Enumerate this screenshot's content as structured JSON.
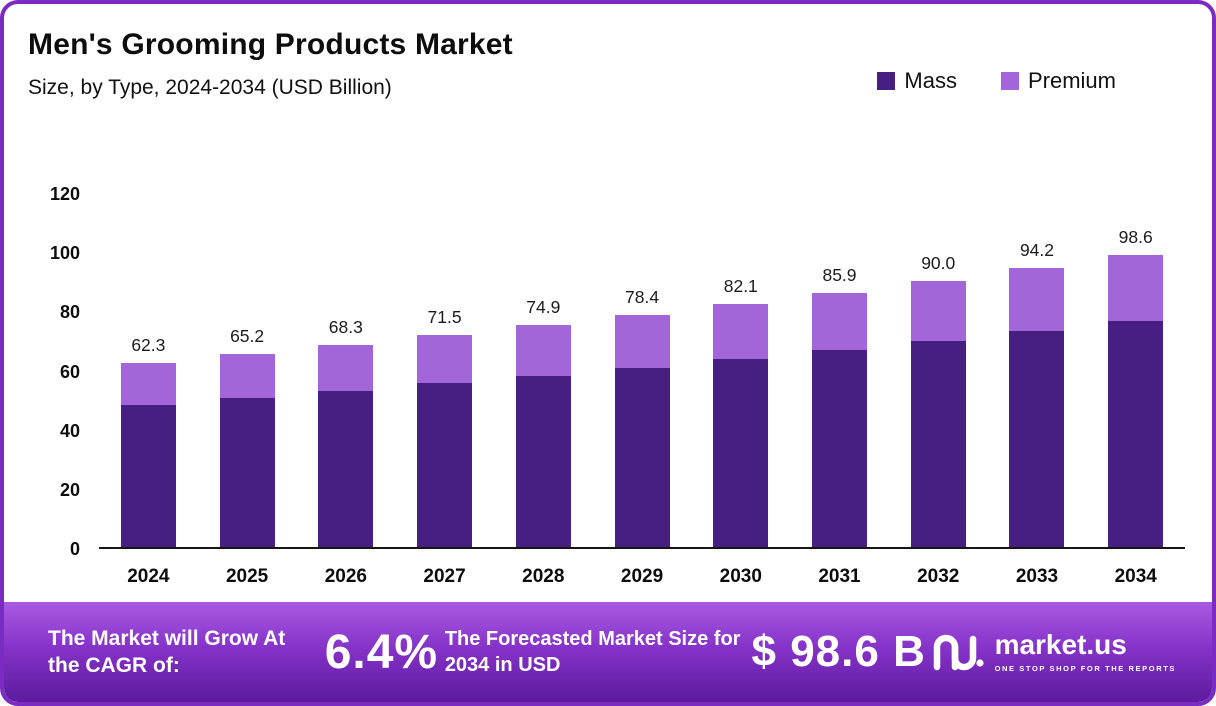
{
  "header": {
    "title": "Men's Grooming Products Market",
    "subtitle": "Size, by Type, 2024-2034 (USD Billion)"
  },
  "legend": [
    {
      "label": "Mass",
      "color": "#471f82"
    },
    {
      "label": "Premium",
      "color": "#a266d8"
    }
  ],
  "chart_data": {
    "type": "bar",
    "stacked": true,
    "title": "Men's Grooming Products Market",
    "subtitle": "Size, by Type, 2024-2034 (USD Billion)",
    "unit": "USD Billion",
    "categories": [
      "2024",
      "2025",
      "2026",
      "2027",
      "2028",
      "2029",
      "2030",
      "2031",
      "2032",
      "2033",
      "2034"
    ],
    "series": [
      {
        "name": "Mass",
        "color": "#471f82",
        "values": [
          48.0,
          50.4,
          52.8,
          55.3,
          57.9,
          60.6,
          63.5,
          66.5,
          69.6,
          72.9,
          76.3
        ]
      },
      {
        "name": "Premium",
        "color": "#a266d8",
        "values": [
          14.3,
          14.8,
          15.5,
          16.2,
          17.0,
          17.8,
          18.6,
          19.4,
          20.4,
          21.3,
          22.3
        ]
      }
    ],
    "totals": [
      "62.3",
      "65.2",
      "68.3",
      "71.5",
      "74.9",
      "78.4",
      "82.1",
      "85.9",
      "90.0",
      "94.2",
      "98.6"
    ],
    "ylim": [
      0,
      120
    ],
    "yticks": [
      0,
      20,
      40,
      60,
      80,
      100,
      120
    ],
    "grid": false,
    "legend_position": "top-right"
  },
  "footer": {
    "cagr_label": "The Market will Grow At the CAGR of:",
    "cagr_value": "6.4%",
    "forecast_label": "The Forecasted Market Size for 2034 in USD",
    "forecast_value": "$ 98.6 B",
    "brand_name": "market.us",
    "brand_tagline": "ONE STOP SHOP FOR THE REPORTS"
  }
}
